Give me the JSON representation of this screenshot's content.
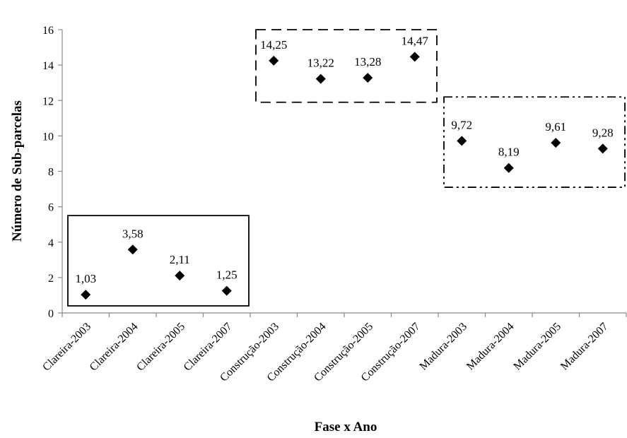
{
  "chart_data": {
    "type": "scatter",
    "categories": [
      "Clareira-2003",
      "Clareira-2004",
      "Clareira-2005",
      "Clareira-2007",
      "Construção-2003",
      "Construção-2004",
      "Construção-2005",
      "Construção-2007",
      "Madura-2003",
      "Madura-2004",
      "Madura-2005",
      "Madura-2007"
    ],
    "values": [
      1.03,
      3.58,
      2.11,
      1.25,
      14.25,
      13.22,
      13.28,
      14.47,
      9.72,
      8.19,
      9.61,
      9.28
    ],
    "data_labels": [
      "1,03",
      "3,58",
      "2,11",
      "1,25",
      "14,25",
      "13,22",
      "13,28",
      "14,47",
      "9,72",
      "8,19",
      "9,61",
      "9,28"
    ],
    "title": "",
    "xlabel": "Fase x Ano",
    "ylabel": "Número de Sub-parcelas",
    "ylim": [
      0,
      16
    ],
    "yticks": [
      "0",
      "2",
      "4",
      "6",
      "8",
      "10",
      "12",
      "14",
      "16"
    ],
    "grid": false,
    "legend": "none",
    "marker": "diamond",
    "marker_color": "#000000",
    "groups": [
      {
        "name": "Clareira",
        "border": "solid",
        "categories": [
          0,
          3
        ],
        "y_range": [
          0.4,
          5.5
        ]
      },
      {
        "name": "Construção",
        "border": "dashed",
        "categories": [
          4,
          7
        ],
        "y_range": [
          11.9,
          16.0
        ]
      },
      {
        "name": "Madura",
        "border": "dash-dot",
        "categories": [
          8,
          11
        ],
        "y_range": [
          7.1,
          12.2
        ]
      }
    ]
  }
}
